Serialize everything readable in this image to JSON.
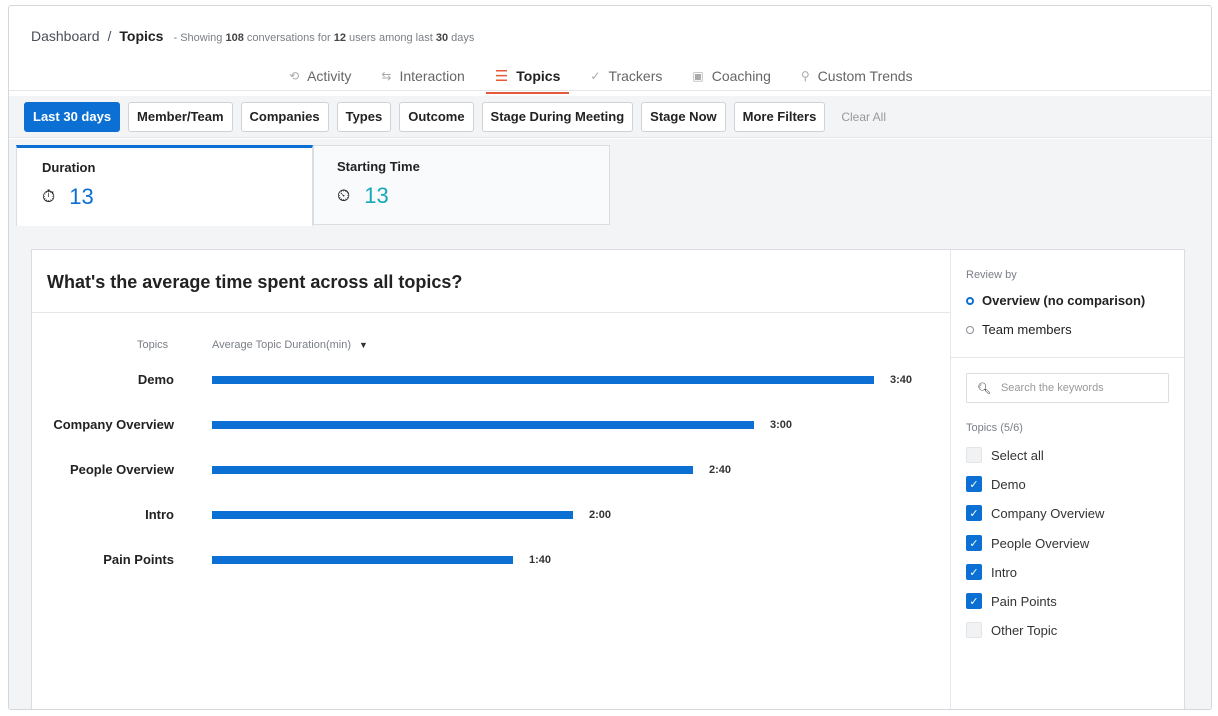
{
  "breadcrumb": {
    "parent": "Dashboard",
    "separator": "/",
    "current": "Topics",
    "summary": {
      "prefix": "- Showing",
      "conversations": "108",
      "mid1": "conversations for",
      "users": "12",
      "mid2": "users among last",
      "days": "30",
      "suffix": "days"
    }
  },
  "nav": [
    {
      "label": "Activity",
      "icon": "activity-icon",
      "glyph": "⟲"
    },
    {
      "label": "Interaction",
      "icon": "interaction-icon",
      "glyph": "⇆"
    },
    {
      "label": "Topics",
      "icon": "topics-icon",
      "glyph": "☰"
    },
    {
      "label": "Trackers",
      "icon": "trackers-icon",
      "glyph": "✓"
    },
    {
      "label": "Coaching",
      "icon": "coaching-icon",
      "glyph": "▣"
    },
    {
      "label": "Custom Trends",
      "icon": "custom-trends-icon",
      "glyph": "⚲"
    }
  ],
  "filters": {
    "last30": "Last 30 days",
    "member": "Member/Team",
    "companies": "Companies",
    "types": "Types",
    "outcome": "Outcome",
    "stage_meeting": "Stage During Meeting",
    "stage_now": "Stage Now",
    "more": "More Filters",
    "clear": "Clear All"
  },
  "metric_tabs": {
    "duration": {
      "label": "Duration",
      "value": "13"
    },
    "starting": {
      "label": "Starting Time",
      "value": "13"
    }
  },
  "question": "What's the average time spent across all topics?",
  "chart_data": {
    "type": "bar",
    "orientation": "horizontal",
    "xlabel": "Average Topic Duration(min)",
    "ylabel": "Topics",
    "categories": [
      "Demo",
      "Company Overview",
      "People Overview",
      "Intro",
      "Pain Points"
    ],
    "values": [
      3.6667,
      3.0,
      2.6667,
      2.0,
      1.6667
    ],
    "labels": [
      "3:40",
      "3:00",
      "2:40",
      "2:00",
      "1:40"
    ],
    "color": "#0b6fd4",
    "max": 3.6667
  },
  "side": {
    "review_label": "Review by",
    "opt1": "Overview (no comparison)",
    "opt2": "Team members",
    "search_placeholder": "Search the keywords",
    "topics_label": "Topics (5/6)",
    "topics": [
      {
        "label": "Select all",
        "checked": false
      },
      {
        "label": "Demo",
        "checked": true
      },
      {
        "label": "Company Overview",
        "checked": true
      },
      {
        "label": "People Overview",
        "checked": true
      },
      {
        "label": "Intro",
        "checked": true
      },
      {
        "label": "Pain Points",
        "checked": true
      },
      {
        "label": "Other Topic",
        "checked": false
      }
    ]
  },
  "colors": {
    "accent": "#0b6fd4",
    "nav_active": "#e45a3a",
    "starting_time": "#14a8b8"
  }
}
